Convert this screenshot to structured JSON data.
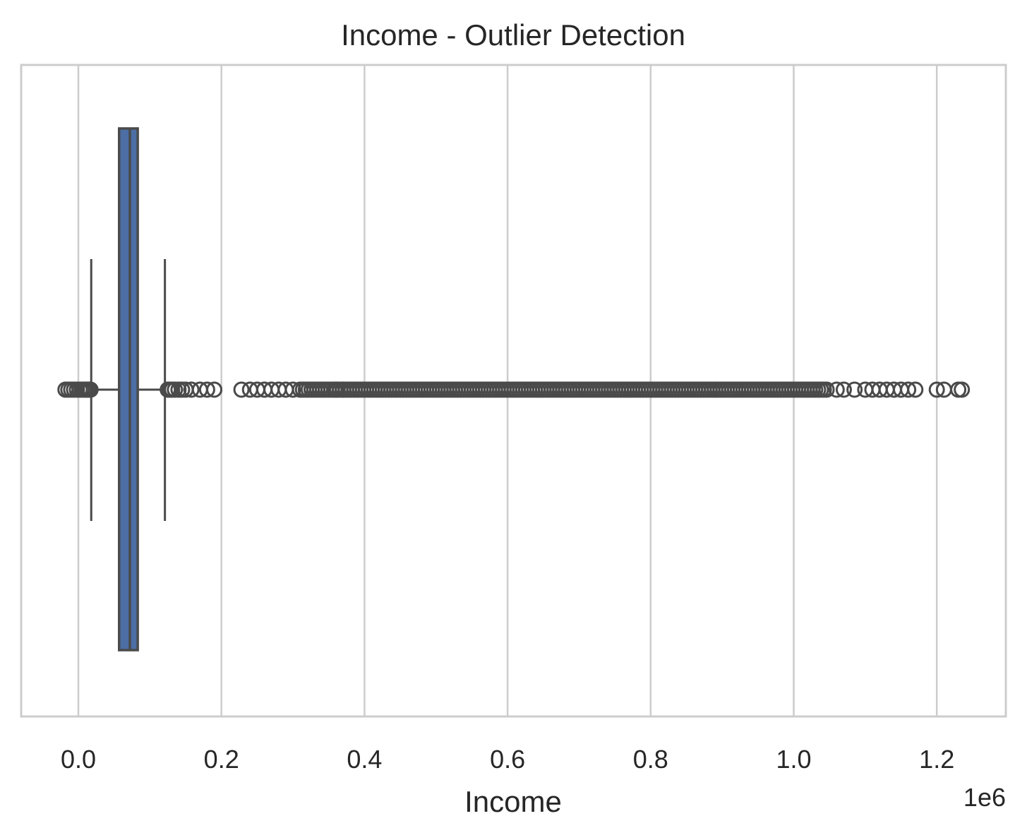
{
  "chart_data": {
    "type": "box",
    "title": "Income - Outlier Detection",
    "xlabel": "Income",
    "offset_label": "1e6",
    "xlim": [
      -0.04,
      1.3
    ],
    "ticks": [
      {
        "value": 0.0,
        "label": "0.0"
      },
      {
        "value": 0.2,
        "label": "0.2"
      },
      {
        "value": 0.4,
        "label": "0.4"
      },
      {
        "value": 0.6,
        "label": "0.6"
      },
      {
        "value": 0.8,
        "label": "0.8"
      },
      {
        "value": 1.0,
        "label": "1.0"
      },
      {
        "value": 1.2,
        "label": "1.2"
      }
    ],
    "grid": true,
    "box": {
      "q1": 0.057,
      "median": 0.072,
      "q3": 0.083,
      "whisker_low": 0.018,
      "whisker_high": 0.121,
      "color": "#4c6ea5",
      "edge_color": "#4a4a4a"
    },
    "outliers": {
      "low": [
        -0.018,
        -0.014,
        -0.01,
        -0.006,
        -0.002,
        0.002,
        0.005,
        0.008,
        0.011,
        0.013,
        0.015,
        0.017
      ],
      "high_sparse": [
        0.125,
        0.128,
        0.131,
        0.135,
        0.14,
        0.145,
        0.15,
        0.158,
        0.17,
        0.18,
        0.19,
        0.228,
        0.24,
        0.25,
        0.26,
        0.27,
        0.28,
        0.29,
        0.3,
        0.36,
        0.37,
        1.06,
        1.07,
        1.085,
        1.1,
        1.11,
        1.12,
        1.13,
        1.14,
        1.15,
        1.16,
        1.17,
        1.2,
        1.21,
        1.23,
        1.235
      ],
      "dense_range": [
        0.31,
        1.05
      ]
    }
  }
}
